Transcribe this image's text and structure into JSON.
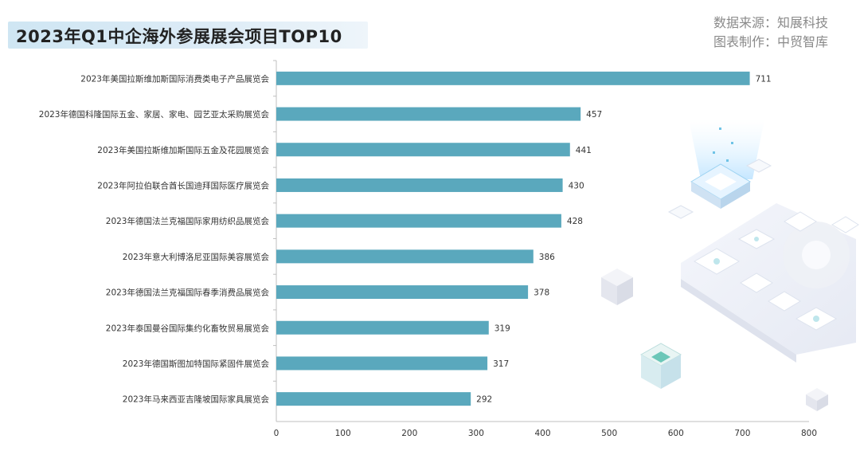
{
  "header": {
    "title": "2023年Q1中企海外参展展会项目TOP10",
    "source_line1": "数据来源：知展科技",
    "source_line2": "图表制作：中贸智库"
  },
  "colors": {
    "bar": "#5aa8bd",
    "axis": "#bfbfbf",
    "text": "#333333"
  },
  "chart_data": {
    "type": "bar",
    "orientation": "horizontal",
    "title": "2023年Q1中企海外参展展会项目TOP10",
    "categories": [
      "2023年美国拉斯维加斯国际消费类电子产品展览会",
      "2023年德国科隆国际五金、家居、家电、园艺亚太采购展览会",
      "2023年美国拉斯维加斯国际五金及花园展览会",
      "2023年阿拉伯联合酋长国迪拜国际医疗展览会",
      "2023年德国法兰克福国际家用纺织品展览会",
      "2023年意大利博洛尼亚国际美容展览会",
      "2023年德国法兰克福国际春季消费品展览会",
      "2023年泰国曼谷国际集约化畜牧贸易展览会",
      "2023年德国斯图加特国际紧固件展览会",
      "2023年马来西亚吉隆坡国际家具展览会"
    ],
    "values": [
      711,
      457,
      441,
      430,
      428,
      386,
      378,
      319,
      317,
      292
    ],
    "xlim": [
      0,
      800
    ],
    "xticks": [
      0,
      100,
      200,
      300,
      400,
      500,
      600,
      700,
      800
    ],
    "grid": false,
    "legend": "none"
  }
}
